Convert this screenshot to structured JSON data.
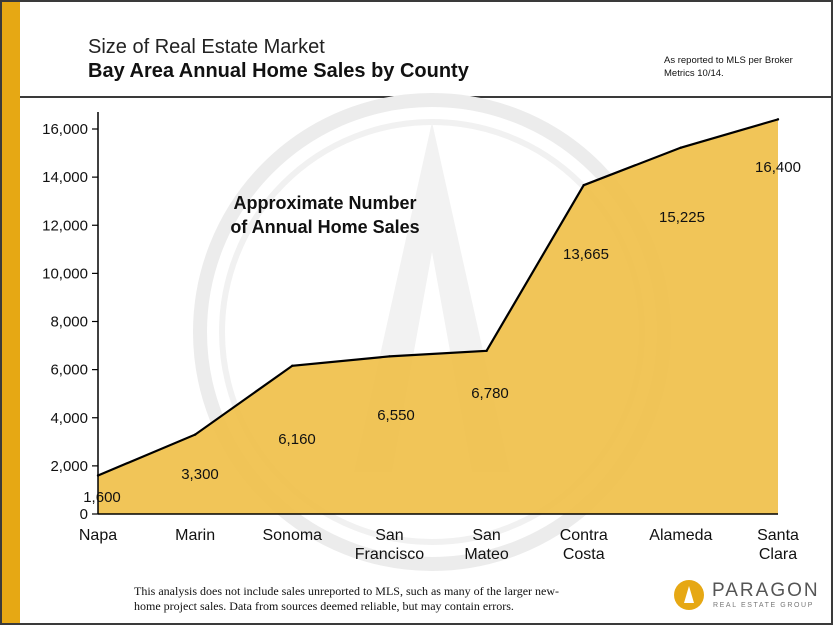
{
  "header": {
    "title": "Size of Real Estate Market",
    "subtitle": "Bay Area Annual Home Sales by County",
    "source_note": "As reported to MLS per Broker Metrics 10/14."
  },
  "chart_data": {
    "type": "area",
    "categories": [
      "Napa",
      "Marin",
      "Sonoma",
      "San Francisco",
      "San Mateo",
      "Contra Costa",
      "Alameda",
      "Santa Clara"
    ],
    "category_labels": [
      [
        "Napa"
      ],
      [
        "Marin"
      ],
      [
        "Sonoma"
      ],
      [
        "San",
        "Francisco"
      ],
      [
        "San",
        "Mateo"
      ],
      [
        "Contra",
        "Costa"
      ],
      [
        "Alameda"
      ],
      [
        "Santa",
        "Clara"
      ]
    ],
    "values": [
      1600,
      3300,
      6160,
      6550,
      6780,
      13665,
      15225,
      16400
    ],
    "value_labels": [
      "1,600",
      "3,300",
      "6,160",
      "6,550",
      "6,780",
      "13,665",
      "15,225",
      "16,400"
    ],
    "yticks": [
      0,
      2000,
      4000,
      6000,
      8000,
      10000,
      12000,
      14000,
      16000
    ],
    "ytick_labels": [
      "0",
      "2,000",
      "4,000",
      "6,000",
      "8,000",
      "10,000",
      "12,000",
      "14,000",
      "16,000"
    ],
    "ylim": [
      0,
      16000
    ],
    "annotation": [
      "Approximate Number",
      "of Annual Home Sales"
    ],
    "fill_color": "#f0c04a",
    "line_color": "#000000",
    "grid": false
  },
  "footnote": {
    "line1": "This analysis does not include sales unreported to MLS, such as many of the larger new-",
    "line2": "home project sales. Data from sources deemed reliable, but may contain errors."
  },
  "logo": {
    "name": "PARAGON",
    "tagline": "REAL ESTATE GROUP",
    "color": "#e6a814"
  }
}
